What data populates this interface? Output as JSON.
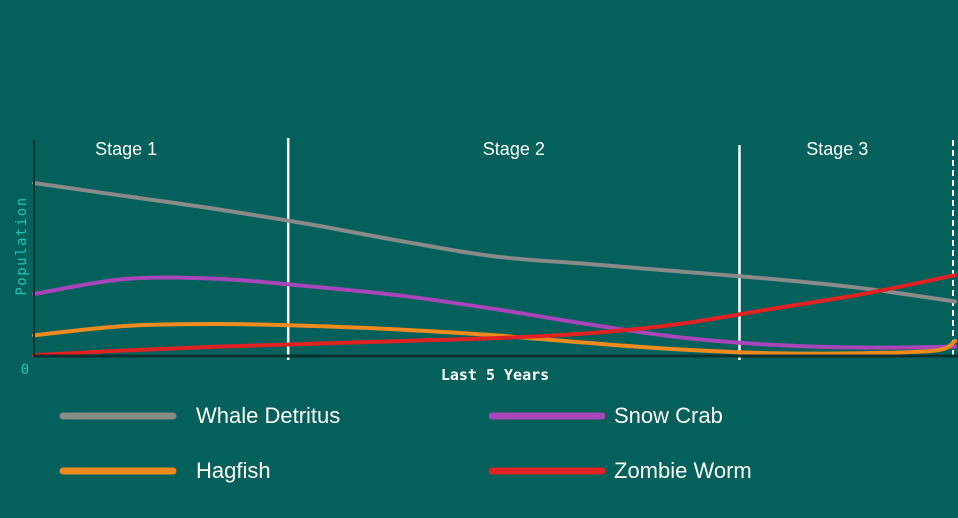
{
  "chart_data": {
    "type": "line",
    "title": "",
    "xlabel": "Last 5 Years",
    "ylabel": "Population",
    "origin_label": "0",
    "xlim": [
      0,
      5
    ],
    "ylim": [
      0,
      100
    ],
    "grid": false,
    "legend_position": "bottom",
    "stages": [
      {
        "label": "Stage 1",
        "start": 0,
        "end": 1.38
      },
      {
        "label": "Stage 2",
        "start": 1.38,
        "end": 3.83
      },
      {
        "label": "Stage 3",
        "start": 3.83,
        "end": 5
      }
    ],
    "series": [
      {
        "name": "Whale Detritus",
        "color": "#8A8A8A",
        "x": [
          0,
          0.5,
          1,
          1.5,
          2,
          2.5,
          3,
          3.5,
          4,
          4.5,
          5
        ],
        "y": [
          92,
          85,
          78,
          70,
          61,
          53,
          49,
          45,
          41,
          36,
          29
        ]
      },
      {
        "name": "Snow Crab",
        "color": "#A845B8",
        "x": [
          0,
          0.5,
          1,
          1.5,
          2,
          2.5,
          3,
          3.5,
          4,
          4.5,
          5
        ],
        "y": [
          33,
          41,
          41,
          37,
          32,
          25,
          17,
          10,
          6,
          4.5,
          5
        ]
      },
      {
        "name": "Hagfish",
        "color": "#F08A1E",
        "x": [
          0,
          0.5,
          1,
          1.5,
          2,
          2.5,
          3,
          3.5,
          4,
          4.5,
          4.9,
          5
        ],
        "y": [
          11,
          16,
          17,
          16,
          14,
          11,
          7,
          3.5,
          1.5,
          1.5,
          3,
          8
        ]
      },
      {
        "name": "Zombie Worm",
        "color": "#E02222",
        "x": [
          0,
          0.5,
          1,
          1.5,
          2,
          2.5,
          3,
          3.5,
          4,
          4.5,
          5
        ],
        "y": [
          0.5,
          3,
          5,
          6.5,
          8,
          9.5,
          12,
          17,
          25,
          33,
          43
        ]
      }
    ]
  }
}
